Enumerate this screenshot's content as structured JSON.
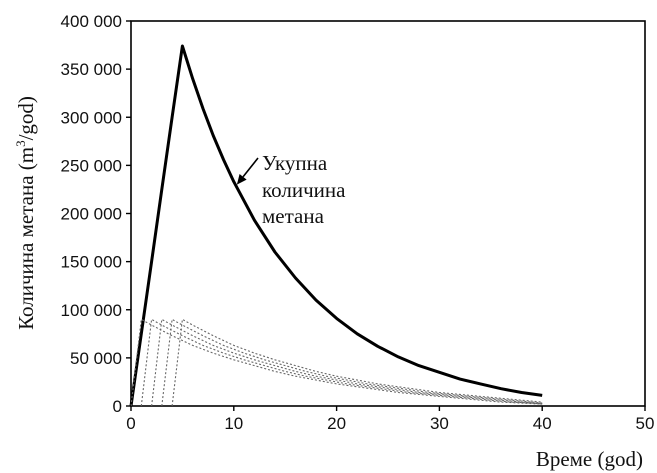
{
  "chart_data": {
    "type": "line",
    "title": "",
    "xlabel": "Време (god)",
    "ylabel_main": "Количина метана (m",
    "ylabel_sup": "3",
    "ylabel_tail": "/god)",
    "xlim": [
      0,
      50
    ],
    "ylim": [
      0,
      400000
    ],
    "x_ticks": [
      0,
      10,
      20,
      30,
      40,
      50
    ],
    "y_ticks": [
      0,
      50000,
      100000,
      150000,
      200000,
      250000,
      300000,
      350000,
      400000
    ],
    "y_tick_labels": [
      "0",
      "50 000",
      "100 000",
      "150 000",
      "200 000",
      "250 000",
      "300 000",
      "350 000",
      "400 000"
    ],
    "grid": false,
    "legend": "none",
    "annotation": {
      "lines": [
        "Укупна",
        "количина",
        "метана"
      ],
      "arrow_to": [
        10.3,
        230000
      ]
    },
    "colors": {
      "total": "#000000",
      "component": "#666666"
    },
    "series": [
      {
        "name": "Укупна количина метана",
        "style": "solid-thick",
        "x": [
          0,
          1,
          2,
          3,
          4,
          5,
          6,
          7,
          8,
          9,
          10,
          12,
          14,
          16,
          18,
          20,
          22,
          24,
          26,
          28,
          30,
          32,
          34,
          36,
          38,
          40
        ],
        "y": [
          0,
          75000,
          150000,
          225000,
          300000,
          374000,
          340000,
          309000,
          281000,
          256000,
          233000,
          193000,
          160000,
          133000,
          110000,
          91000,
          75000,
          62000,
          51000,
          42000,
          35000,
          28000,
          23000,
          18000,
          14000,
          11000
        ]
      },
      {
        "name": "",
        "style": "dotted",
        "x": [
          0,
          1,
          2,
          4,
          6,
          8,
          10,
          12,
          14,
          16,
          18,
          20,
          22,
          24,
          26,
          28,
          30,
          32,
          34,
          36,
          38,
          40
        ],
        "y": [
          0,
          90000,
          84000,
          73000,
          63000,
          55000,
          48000,
          42000,
          36000,
          31000,
          27000,
          23000,
          20000,
          17000,
          14000,
          12000,
          10000,
          8000,
          6000,
          4000,
          3000,
          2000
        ]
      },
      {
        "name": "",
        "style": "dotted",
        "x": [
          1,
          2,
          3,
          5,
          7,
          9,
          11,
          13,
          15,
          17,
          19,
          21,
          23,
          25,
          27,
          29,
          31,
          33,
          35,
          37,
          39,
          40
        ],
        "y": [
          0,
          90000,
          84000,
          73000,
          63000,
          55000,
          48000,
          42000,
          36000,
          31000,
          27000,
          23000,
          20000,
          17000,
          14000,
          12000,
          10000,
          8000,
          6000,
          4000,
          3000,
          2000
        ]
      },
      {
        "name": "",
        "style": "dotted",
        "x": [
          2,
          3,
          4,
          6,
          8,
          10,
          12,
          14,
          16,
          18,
          20,
          22,
          24,
          26,
          28,
          30,
          32,
          34,
          36,
          38,
          40
        ],
        "y": [
          0,
          90000,
          84000,
          73000,
          63000,
          55000,
          48000,
          42000,
          36000,
          31000,
          27000,
          23000,
          20000,
          17000,
          14000,
          12000,
          10000,
          8000,
          6000,
          4000,
          2500
        ]
      },
      {
        "name": "",
        "style": "dotted",
        "x": [
          3,
          4,
          5,
          7,
          9,
          11,
          13,
          15,
          17,
          19,
          21,
          23,
          25,
          27,
          29,
          31,
          33,
          35,
          37,
          39,
          40
        ],
        "y": [
          0,
          90000,
          84000,
          73000,
          63000,
          55000,
          48000,
          42000,
          36000,
          31000,
          27000,
          23000,
          20000,
          17000,
          14000,
          12000,
          10000,
          8000,
          6000,
          4000,
          3000
        ]
      },
      {
        "name": "",
        "style": "dotted",
        "x": [
          4,
          5,
          6,
          8,
          10,
          12,
          14,
          16,
          18,
          20,
          22,
          24,
          26,
          28,
          30,
          32,
          34,
          36,
          38,
          40
        ],
        "y": [
          0,
          90000,
          84000,
          73000,
          63000,
          55000,
          48000,
          42000,
          36000,
          31000,
          27000,
          23000,
          20000,
          17000,
          14000,
          12000,
          10000,
          8000,
          6000,
          4000
        ]
      }
    ]
  }
}
